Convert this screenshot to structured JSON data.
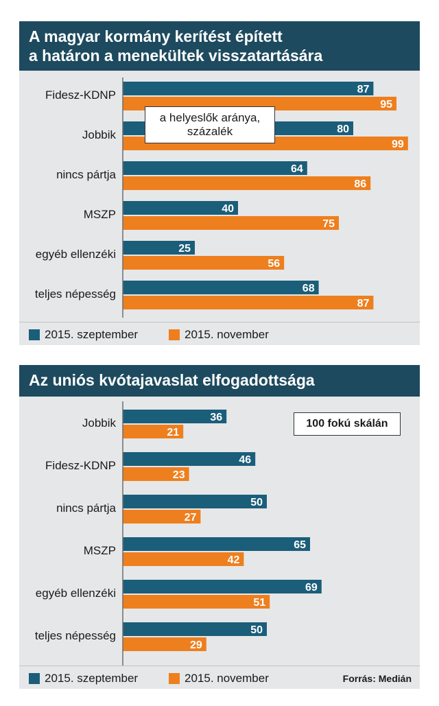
{
  "colors": {
    "series1": "#1b5e7a",
    "series2": "#ee7f1e",
    "title_bg": "#1d4a5e",
    "panel_bg": "#e6e7e8"
  },
  "chart_data": [
    {
      "type": "bar",
      "orientation": "horizontal",
      "title": "A magyar kormány kerítést épített\na határon a menekültek visszatartására",
      "annotation": "a helyeslők aránya,\nszázalék",
      "categories": [
        "Fidesz-KDNP",
        "Jobbik",
        "nincs pártja",
        "MSZP",
        "egyéb ellenzéki",
        "teljes népesség"
      ],
      "series": [
        {
          "name": "2015. szeptember",
          "values": [
            87,
            80,
            64,
            40,
            25,
            68
          ]
        },
        {
          "name": "2015. november",
          "values": [
            95,
            99,
            86,
            75,
            56,
            87
          ]
        }
      ],
      "xlim": [
        0,
        100
      ],
      "legend": "bottom-left"
    },
    {
      "type": "bar",
      "orientation": "horizontal",
      "title": "Az uniós kvótajavaslat elfogadottsága",
      "annotation": "100 fokú skálán",
      "categories": [
        "Jobbik",
        "Fidesz-KDNP",
        "nincs pártja",
        "MSZP",
        "egyéb ellenzéki",
        "teljes népesség"
      ],
      "series": [
        {
          "name": "2015. szeptember",
          "values": [
            36,
            46,
            50,
            65,
            69,
            50
          ]
        },
        {
          "name": "2015. november",
          "values": [
            21,
            23,
            27,
            42,
            51,
            29
          ]
        }
      ],
      "xlim": [
        0,
        100
      ],
      "legend": "bottom-left",
      "source": "Forrás: Medián"
    }
  ]
}
